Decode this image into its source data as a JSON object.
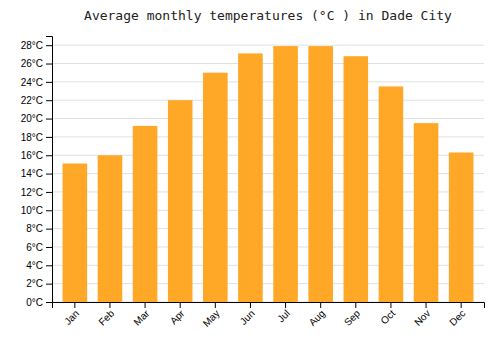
{
  "chart_data": {
    "type": "bar",
    "title": "Average monthly temperatures (°C ) in Dade City",
    "categories": [
      "Jan",
      "Feb",
      "Mar",
      "Apr",
      "May",
      "Jun",
      "Jul",
      "Aug",
      "Sep",
      "Oct",
      "Nov",
      "Dec"
    ],
    "values": [
      15.1,
      16.0,
      19.2,
      22.0,
      25.0,
      27.1,
      27.9,
      27.9,
      26.8,
      23.5,
      19.5,
      16.3
    ],
    "color": "#FFA726",
    "ylim": [
      0,
      29
    ],
    "yticks": [
      {
        "value": 0,
        "label": "0°C"
      },
      {
        "value": 2,
        "label": "2°C"
      },
      {
        "value": 4,
        "label": "4°C"
      },
      {
        "value": 6,
        "label": "6°C"
      },
      {
        "value": 8,
        "label": "8°C"
      },
      {
        "value": 10,
        "label": "10°C"
      },
      {
        "value": 12,
        "label": "12°C"
      },
      {
        "value": 14,
        "label": "14°C"
      },
      {
        "value": 16,
        "label": "16°C"
      },
      {
        "value": 18,
        "label": "18°C"
      },
      {
        "value": 20,
        "label": "20°C"
      },
      {
        "value": 22,
        "label": "22°C"
      },
      {
        "value": 24,
        "label": "24°C"
      },
      {
        "value": 26,
        "label": "26°C"
      },
      {
        "value": 28,
        "label": "28°C"
      }
    ],
    "grid": true
  }
}
